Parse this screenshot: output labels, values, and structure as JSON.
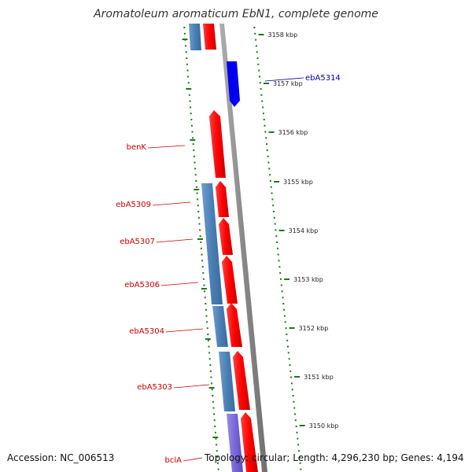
{
  "title": "Aromatoleum aromaticum EbN1, complete genome",
  "footer": {
    "accession": "Accession: NC_006513",
    "summary": "Topology: circular; Length: 4,296,230 bp; Genes: 4,194"
  },
  "colors": {
    "forward_gene": "#ff0000",
    "reverse_gene": "#4a7fb5",
    "highlight_gene": "#0000ff",
    "purple_gene": "#7b68d8",
    "backbone": "#888888",
    "tick": "#1a7a1a",
    "gene_label": "#cc0000",
    "highlight_label": "#0000aa"
  },
  "ruler": [
    {
      "label": "3158 kbp"
    },
    {
      "label": "3157 kbp"
    },
    {
      "label": "3156 kbp"
    },
    {
      "label": "3155 kbp"
    },
    {
      "label": "3154 kbp"
    },
    {
      "label": "3153 kbp"
    },
    {
      "label": "3152 kbp"
    },
    {
      "label": "3151 kbp"
    },
    {
      "label": "3150 kbp"
    }
  ],
  "gene_labels": [
    {
      "label": "ebA5314",
      "highlight": true
    },
    {
      "label": "benK",
      "highlight": false
    },
    {
      "label": "ebA5309",
      "highlight": false
    },
    {
      "label": "ebA5307",
      "highlight": false
    },
    {
      "label": "ebA5306",
      "highlight": false
    },
    {
      "label": "ebA5304",
      "highlight": false
    },
    {
      "label": "ebA5303",
      "highlight": false
    },
    {
      "label": "bclA",
      "highlight": false
    }
  ]
}
